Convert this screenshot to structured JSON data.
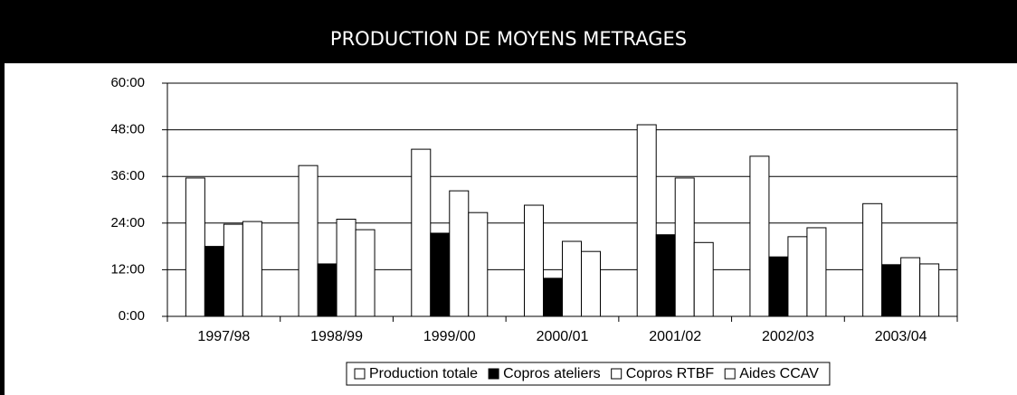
{
  "chart_data": {
    "type": "bar",
    "title": "PRODUCTION DE MOYENS METRAGES",
    "categories": [
      "1997/98",
      "1998/99",
      "1999/00",
      "2000/01",
      "2001/02",
      "2002/03",
      "2003/04"
    ],
    "series": [
      {
        "name": "Production totale",
        "color": "#ffffff",
        "values": [
          35.6,
          38.8,
          43,
          28.6,
          49.3,
          41.2,
          29
        ]
      },
      {
        "name": "Copros ateliers",
        "color": "#000000",
        "values": [
          18,
          13.5,
          21.4,
          9.8,
          21,
          15.3,
          13.3
        ]
      },
      {
        "name": "Copros RTBF",
        "color": "#ffffff",
        "values": [
          23.7,
          25,
          32.3,
          19.3,
          35.6,
          20.5,
          15.1
        ]
      },
      {
        "name": "Aides CCAV",
        "color": "#ffffff",
        "values": [
          24.4,
          22.3,
          26.7,
          16.7,
          19,
          22.8,
          13.5
        ]
      }
    ],
    "ylim": [
      0,
      60
    ],
    "yticks": [
      {
        "value": 0,
        "label": "0:00"
      },
      {
        "value": 12,
        "label": "12:00"
      },
      {
        "value": 24,
        "label": "24:00"
      },
      {
        "value": 36,
        "label": "36:00"
      },
      {
        "value": 48,
        "label": "48:00"
      },
      {
        "value": 60,
        "label": "60:00"
      }
    ],
    "grid": true,
    "legend": "bottom"
  }
}
